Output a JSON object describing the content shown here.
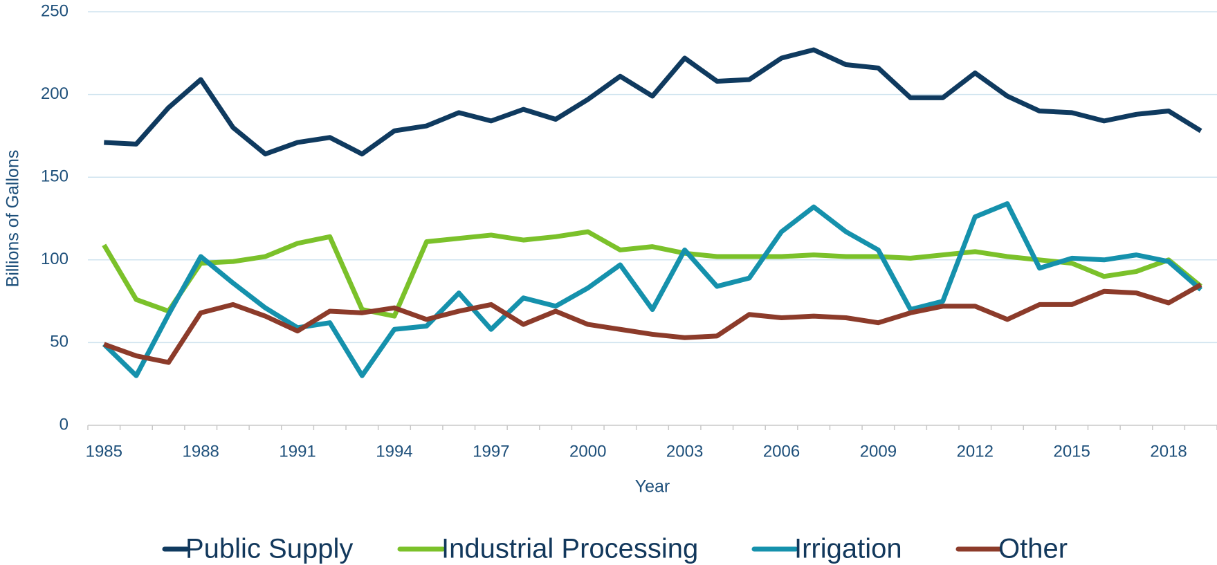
{
  "chart_data": {
    "type": "line",
    "x": [
      1985,
      1986,
      1987,
      1988,
      1989,
      1990,
      1991,
      1992,
      1993,
      1994,
      1995,
      1996,
      1997,
      1998,
      1999,
      2000,
      2001,
      2002,
      2003,
      2004,
      2005,
      2006,
      2007,
      2008,
      2009,
      2010,
      2011,
      2012,
      2013,
      2014,
      2015,
      2016,
      2017,
      2018,
      2019
    ],
    "xlim": [
      1984.5,
      2019.5
    ],
    "xticks": [
      1985,
      1988,
      1991,
      1994,
      1997,
      2000,
      2003,
      2006,
      2009,
      2012,
      2015,
      2018
    ],
    "ylim": [
      0,
      250
    ],
    "yticks": [
      0,
      50,
      100,
      150,
      200,
      250
    ],
    "grid": true,
    "x_label": "Year",
    "y_label": "Billions of Gallons",
    "legend": "bottom",
    "series": [
      {
        "name": "Public Supply",
        "color": "#0f3a5f",
        "values": [
          171,
          170,
          192,
          209,
          180,
          164,
          171,
          174,
          164,
          178,
          181,
          189,
          184,
          191,
          185,
          197,
          211,
          199,
          222,
          208,
          209,
          222,
          227,
          218,
          216,
          198,
          198,
          213,
          199,
          190,
          189,
          184,
          188,
          190,
          178
        ]
      },
      {
        "name": "Industrial Processing",
        "color": "#7bc12a",
        "values": [
          109,
          76,
          69,
          98,
          99,
          102,
          110,
          114,
          70,
          66,
          111,
          113,
          115,
          112,
          114,
          117,
          106,
          108,
          104,
          102,
          102,
          102,
          103,
          102,
          102,
          101,
          103,
          105,
          102,
          100,
          98,
          90,
          93,
          100,
          84
        ]
      },
      {
        "name": "Irrigation",
        "color": "#1591ac",
        "values": [
          49,
          30,
          67,
          102,
          86,
          71,
          59,
          62,
          30,
          58,
          60,
          80,
          58,
          77,
          72,
          83,
          97,
          70,
          106,
          84,
          89,
          117,
          132,
          117,
          106,
          70,
          75,
          126,
          134,
          95,
          101,
          100,
          103,
          99,
          82
        ]
      },
      {
        "name": "Other",
        "color": "#8c3b2a",
        "values": [
          49,
          42,
          38,
          68,
          73,
          66,
          57,
          69,
          68,
          71,
          64,
          69,
          73,
          61,
          69,
          61,
          58,
          55,
          53,
          54,
          67,
          65,
          66,
          65,
          62,
          68,
          72,
          72,
          64,
          73,
          73,
          81,
          80,
          74,
          85
        ]
      }
    ]
  }
}
